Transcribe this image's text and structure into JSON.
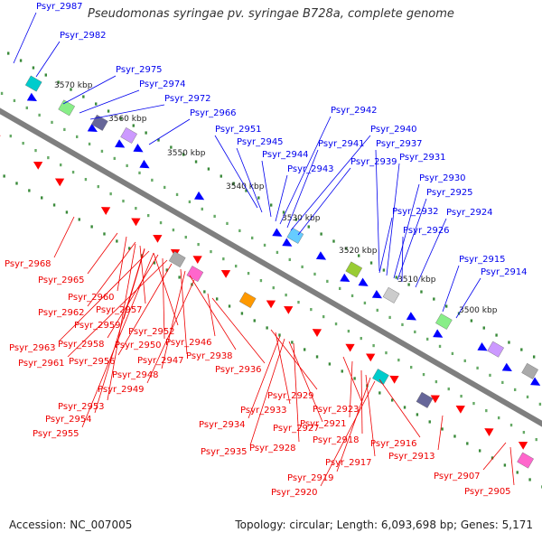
{
  "title": "Pseudomonas syringae pv. syringae B728a, complete genome",
  "footer": {
    "accession": "Accession: NC_007005",
    "summary": "Topology: circular; Length: 6,093,698 bp; Genes: 5,171"
  },
  "colors": {
    "backbone": "#7f7f7f",
    "forward_label": "#0000ee",
    "reverse_label": "#ee0000",
    "forward_gene": "#0000ff",
    "reverse_gene": "#ff0000",
    "tick": "#3a8a3a"
  },
  "scale_labels": [
    "3570 kbp",
    "3560 kbp",
    "3550 kbp",
    "3540 kbp",
    "3530 kbp",
    "3520 kbp",
    "3510 kbp",
    "3500 kbp"
  ],
  "forward_labels": [
    "Psyr_2987",
    "Psyr_2982",
    "Psyr_2975",
    "Psyr_2974",
    "Psyr_2972",
    "Psyr_2966",
    "Psyr_2951",
    "Psyr_2945",
    "Psyr_2944",
    "Psyr_2943",
    "Psyr_2942",
    "Psyr_2941",
    "Psyr_2940",
    "Psyr_2939",
    "Psyr_2937",
    "Psyr_2931",
    "Psyr_2930",
    "Psyr_2932",
    "Psyr_2925",
    "Psyr_2926",
    "Psyr_2924",
    "Psyr_2915",
    "Psyr_2914"
  ],
  "reverse_labels": [
    "Psyr_2968",
    "Psyr_2965",
    "Psyr_2960",
    "Psyr_2962",
    "Psyr_2957",
    "Psyr_2959",
    "Psyr_2952",
    "Psyr_2963",
    "Psyr_2958",
    "Psyr_2950",
    "Psyr_2961",
    "Psyr_2956",
    "Psyr_2947",
    "Psyr_2946",
    "Psyr_2948",
    "Psyr_2938",
    "Psyr_2949",
    "Psyr_2936",
    "Psyr_2929",
    "Psyr_2953",
    "Psyr_2933",
    "Psyr_2923",
    "Psyr_2934",
    "Psyr_2927",
    "Psyr_2921",
    "Psyr_2954",
    "Psyr_2928",
    "Psyr_2918",
    "Psyr_2916",
    "Psyr_2955",
    "Psyr_2935",
    "Psyr_2917",
    "Psyr_2913",
    "Psyr_2919",
    "Psyr_2920",
    "Psyr_2907",
    "Psyr_2905"
  ]
}
